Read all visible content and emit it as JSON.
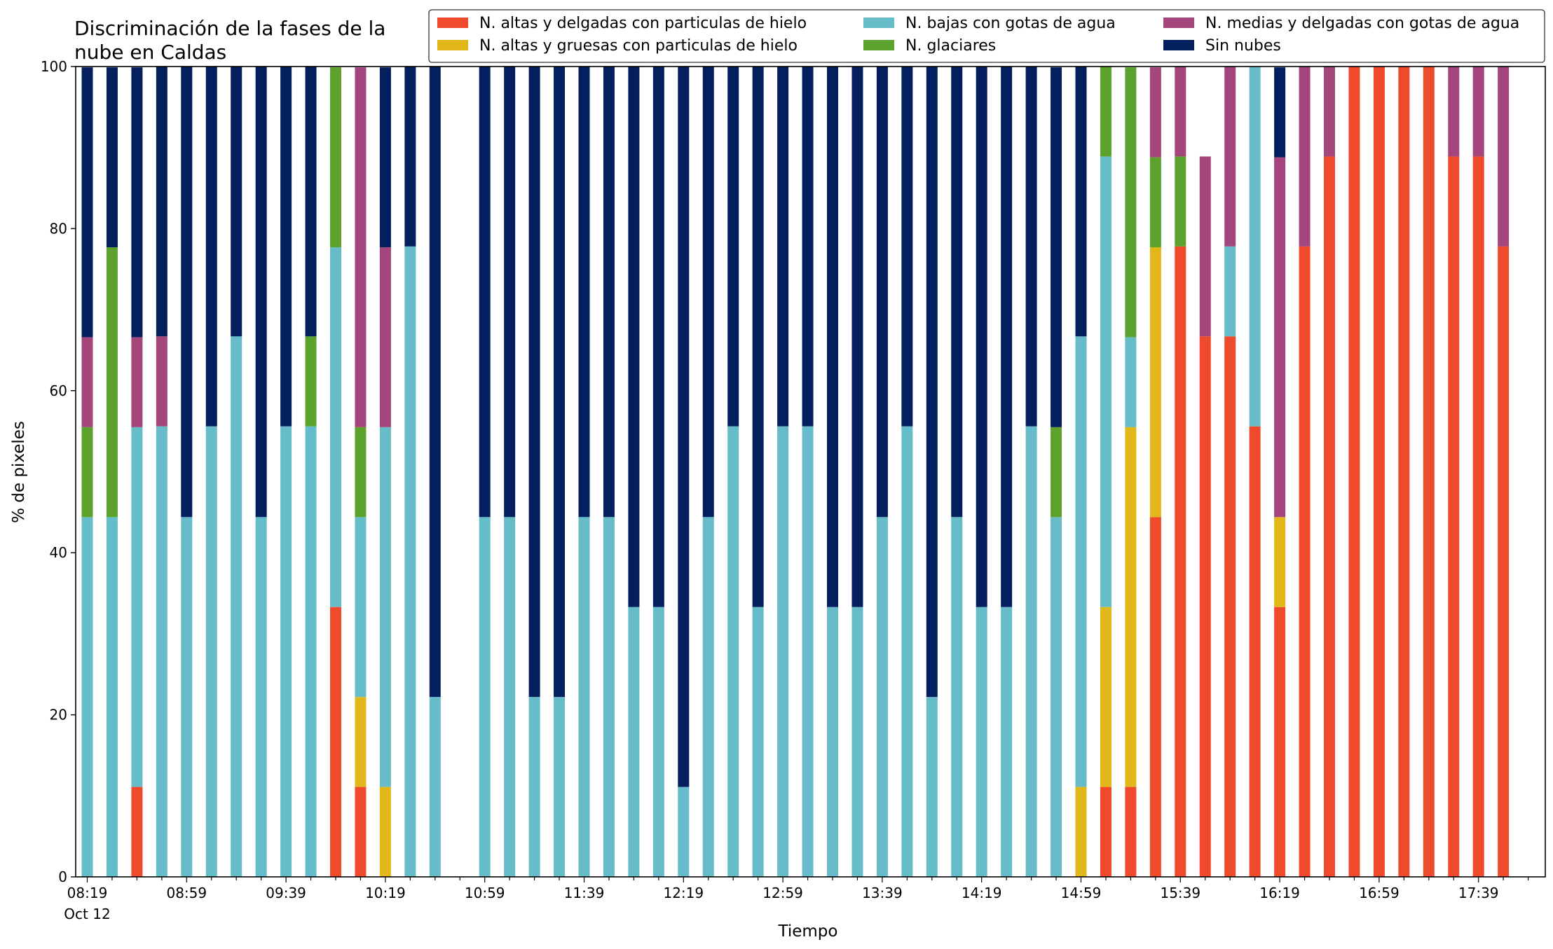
{
  "chart_data": {
    "type": "bar",
    "stacked": true,
    "title": "Discriminación de la fases de la nube en Caldas",
    "title_lines": [
      "Discriminación de la fases de la",
      "nube en Caldas"
    ],
    "xlabel": "Tiempo",
    "ylabel": "% de pixeles",
    "ylim": [
      0,
      100
    ],
    "y_ticks": [
      0,
      20,
      40,
      60,
      80,
      100
    ],
    "x_tick_labels": [
      "08:19",
      "08:59",
      "09:39",
      "10:19",
      "10:59",
      "11:39",
      "12:19",
      "12:59",
      "13:39",
      "14:19",
      "14:59",
      "15:39",
      "16:19",
      "16:59",
      "17:39"
    ],
    "x_date_label": "Oct 12",
    "grid": false,
    "legend_position": "top-right",
    "interval_minutes": 10,
    "categories": [
      "08:19",
      "08:29",
      "08:39",
      "08:49",
      "08:59",
      "09:09",
      "09:19",
      "09:29",
      "09:39",
      "09:49",
      "09:59",
      "10:09",
      "10:19",
      "10:29",
      "10:39",
      "10:49",
      "10:59",
      "11:09",
      "11:19",
      "11:29",
      "11:39",
      "11:49",
      "11:59",
      "12:09",
      "12:19",
      "12:29",
      "12:39",
      "12:49",
      "12:59",
      "13:09",
      "13:19",
      "13:29",
      "13:39",
      "13:49",
      "13:59",
      "14:09",
      "14:19",
      "14:29",
      "14:39",
      "14:49",
      "14:59",
      "15:09",
      "15:19",
      "15:29",
      "15:39",
      "15:49",
      "15:59",
      "16:09",
      "16:19",
      "16:29",
      "16:39",
      "16:49",
      "16:59",
      "17:09",
      "17:19",
      "17:29",
      "17:39",
      "17:49",
      "17:59"
    ],
    "series": [
      {
        "name": "N. altas y delgadas con particulas de hielo",
        "color": "#ef4a2b",
        "values": [
          0,
          0,
          11.1,
          0,
          0,
          0,
          0,
          0,
          0,
          0,
          33.3,
          11.1,
          0,
          0,
          0,
          0,
          0,
          0,
          0,
          0,
          0,
          0,
          0,
          0,
          0,
          0,
          0,
          0,
          0,
          0,
          0,
          0,
          0,
          0,
          0,
          0,
          0,
          0,
          0,
          0,
          0,
          11.1,
          11.1,
          44.4,
          77.8,
          66.7,
          66.7,
          55.6,
          33.3,
          77.8,
          88.9,
          100,
          100,
          100,
          100,
          88.9,
          88.9,
          77.8,
          0
        ]
      },
      {
        "name": "N. altas y gruesas con particulas de hielo",
        "color": "#e2b71a",
        "values": [
          0,
          0,
          0,
          0,
          0,
          0,
          0,
          0,
          0,
          0,
          0,
          11.1,
          11.1,
          0,
          0,
          0,
          0,
          0,
          0,
          0,
          0,
          0,
          0,
          0,
          0,
          0,
          0,
          0,
          0,
          0,
          0,
          0,
          0,
          0,
          0,
          0,
          0,
          0,
          0,
          0,
          11.1,
          22.2,
          44.4,
          33.3,
          0,
          0,
          0,
          0,
          11.1,
          0,
          0,
          0,
          0,
          0,
          0,
          0,
          0,
          0,
          0
        ]
      },
      {
        "name": "N. bajas con gotas de agua",
        "color": "#66bdc9",
        "values": [
          44.4,
          44.4,
          44.4,
          55.6,
          44.4,
          55.6,
          66.7,
          44.4,
          55.6,
          55.6,
          44.4,
          22.2,
          44.4,
          77.8,
          22.2,
          0,
          44.4,
          44.4,
          22.2,
          22.2,
          44.4,
          44.4,
          33.3,
          33.3,
          11.1,
          44.4,
          55.6,
          33.3,
          55.6,
          55.6,
          33.3,
          33.3,
          44.4,
          55.6,
          22.2,
          44.4,
          33.3,
          33.3,
          55.6,
          44.4,
          55.6,
          55.6,
          11.1,
          0,
          0,
          0,
          11.1,
          44.4,
          0,
          0,
          0,
          0,
          0,
          0,
          0,
          0,
          0,
          0,
          0
        ]
      },
      {
        "name": "N. glaciares",
        "color": "#5ea22e",
        "values": [
          11.1,
          33.3,
          0,
          0,
          0,
          0,
          0,
          0,
          0,
          11.1,
          22.2,
          11.1,
          0,
          0,
          0,
          0,
          0,
          0,
          0,
          0,
          0,
          0,
          0,
          0,
          0,
          0,
          0,
          0,
          0,
          0,
          0,
          0,
          0,
          0,
          0,
          0,
          0,
          0,
          0,
          11.1,
          0,
          11.1,
          33.3,
          11.1,
          11.1,
          0,
          0,
          0,
          0,
          0,
          0,
          0,
          0,
          0,
          0,
          0,
          0,
          0,
          0
        ]
      },
      {
        "name": "N. medias y delgadas con gotas de agua",
        "color": "#a4457b",
        "values": [
          11.1,
          0,
          11.1,
          11.1,
          0,
          0,
          0,
          0,
          0,
          0,
          0,
          44.4,
          22.2,
          0,
          0,
          0,
          0,
          0,
          0,
          0,
          0,
          0,
          0,
          0,
          0,
          0,
          0,
          0,
          0,
          0,
          0,
          0,
          0,
          0,
          0,
          0,
          0,
          0,
          0,
          0,
          0,
          0,
          0,
          11.1,
          11.1,
          22.2,
          22.2,
          0,
          44.4,
          22.2,
          11.1,
          0,
          0,
          0,
          0,
          11.1,
          11.1,
          22.2,
          0
        ]
      },
      {
        "name": "Sin nubes",
        "color": "#031f5e",
        "values": [
          33.3,
          22.2,
          33.3,
          33.3,
          55.6,
          44.4,
          33.3,
          55.6,
          44.4,
          33.3,
          0,
          0,
          22.2,
          22.2,
          77.8,
          0,
          55.6,
          55.6,
          77.8,
          77.8,
          55.6,
          55.6,
          66.7,
          66.7,
          88.9,
          55.6,
          44.4,
          66.7,
          44.4,
          44.4,
          66.7,
          66.7,
          55.6,
          44.4,
          77.8,
          55.6,
          66.7,
          66.7,
          44.4,
          44.4,
          33.3,
          0,
          0,
          0,
          0,
          0,
          0,
          0,
          11.1,
          0,
          0,
          0,
          0,
          0,
          0,
          0,
          0,
          0,
          0
        ]
      }
    ],
    "legend_order": [
      0,
      1,
      2,
      3,
      4,
      5
    ]
  }
}
